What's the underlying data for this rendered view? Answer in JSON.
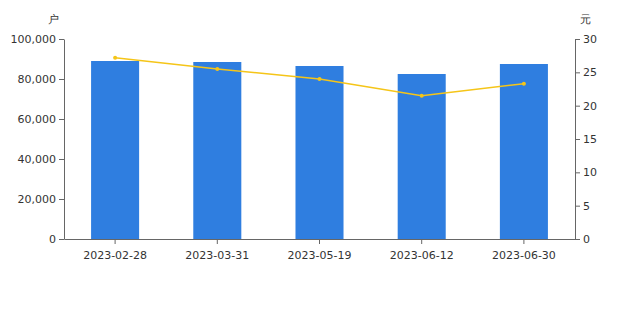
{
  "chart_data": {
    "type": "bar",
    "y_label": "户",
    "y2_label": "元",
    "categories": [
      "2023-02-28",
      "2023-03-31",
      "2023-05-19",
      "2023-06-12",
      "2023-06-30"
    ],
    "series": [
      {
        "type": "bar",
        "color": "#2f7ee0",
        "values": [
          89000,
          88500,
          86500,
          82500,
          87500
        ]
      },
      {
        "type": "line",
        "axis": "y2",
        "color": "#f5c518",
        "marker": "circle",
        "values": [
          27.2,
          25.5,
          24.0,
          21.5,
          23.3
        ]
      }
    ],
    "ylim": [
      0,
      100000
    ],
    "yticks": [
      0,
      {
        "value": 20000,
        "label": "20,000"
      },
      {
        "value": 40000,
        "label": "40,000"
      },
      {
        "value": 60000,
        "label": "60,000"
      },
      {
        "value": 80000,
        "label": "80,000"
      },
      {
        "value": 100000,
        "label": "100,000"
      }
    ],
    "y2lim": [
      0,
      30
    ],
    "y2ticks": [
      0,
      5,
      10,
      15,
      20,
      25,
      30
    ],
    "grid": false
  }
}
